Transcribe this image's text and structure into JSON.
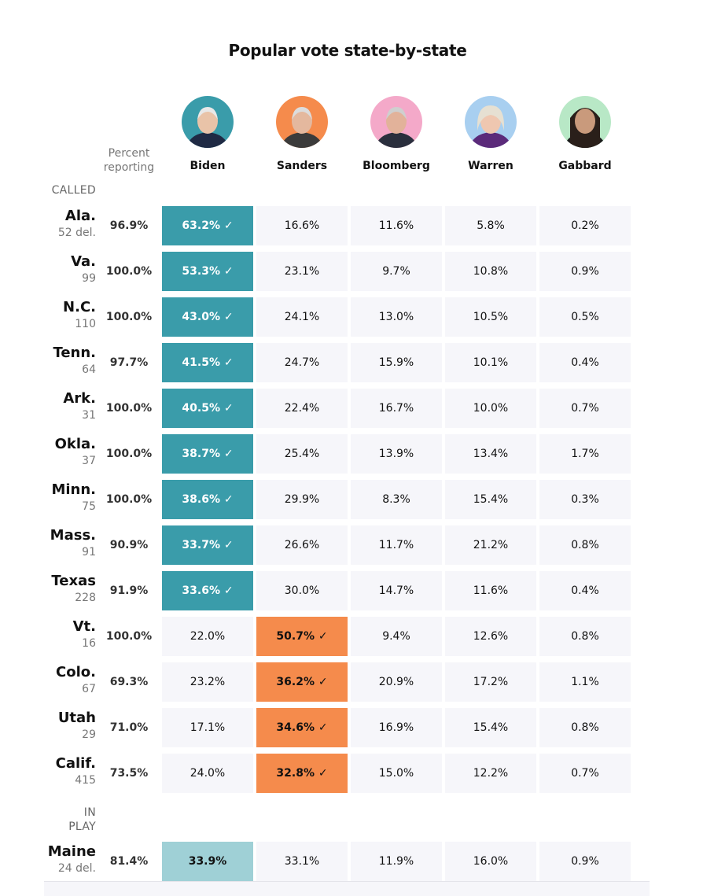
{
  "chart_data": {
    "type": "table",
    "title": "Popular vote state-by-state",
    "reporting_header": "Percent reporting",
    "check_mark": "✓",
    "candidates": [
      {
        "name": "Biden",
        "color": "#3a9caa",
        "avatar_bg": "#3a9caa"
      },
      {
        "name": "Sanders",
        "color": "#f58b4c",
        "avatar_bg": "#f58b4c"
      },
      {
        "name": "Bloomberg",
        "color": "#f4a9c9",
        "avatar_bg": "#f4a9c9"
      },
      {
        "name": "Warren",
        "color": "#a8cff0",
        "avatar_bg": "#a8cff0"
      },
      {
        "name": "Gabbard",
        "color": "#b8e8c6",
        "avatar_bg": "#b8e8c6"
      }
    ],
    "sections": [
      {
        "label": "CALLED",
        "rows": [
          {
            "state": "Ala.",
            "delegates": "52 del.",
            "reporting": "96.9%",
            "values": [
              "63.2%",
              "16.6%",
              "11.6%",
              "5.8%",
              "0.2%"
            ],
            "winner": 0,
            "called": true
          },
          {
            "state": "Va.",
            "delegates": "99",
            "reporting": "100.0%",
            "values": [
              "53.3%",
              "23.1%",
              "9.7%",
              "10.8%",
              "0.9%"
            ],
            "winner": 0,
            "called": true
          },
          {
            "state": "N.C.",
            "delegates": "110",
            "reporting": "100.0%",
            "values": [
              "43.0%",
              "24.1%",
              "13.0%",
              "10.5%",
              "0.5%"
            ],
            "winner": 0,
            "called": true
          },
          {
            "state": "Tenn.",
            "delegates": "64",
            "reporting": "97.7%",
            "values": [
              "41.5%",
              "24.7%",
              "15.9%",
              "10.1%",
              "0.4%"
            ],
            "winner": 0,
            "called": true
          },
          {
            "state": "Ark.",
            "delegates": "31",
            "reporting": "100.0%",
            "values": [
              "40.5%",
              "22.4%",
              "16.7%",
              "10.0%",
              "0.7%"
            ],
            "winner": 0,
            "called": true
          },
          {
            "state": "Okla.",
            "delegates": "37",
            "reporting": "100.0%",
            "values": [
              "38.7%",
              "25.4%",
              "13.9%",
              "13.4%",
              "1.7%"
            ],
            "winner": 0,
            "called": true
          },
          {
            "state": "Minn.",
            "delegates": "75",
            "reporting": "100.0%",
            "values": [
              "38.6%",
              "29.9%",
              "8.3%",
              "15.4%",
              "0.3%"
            ],
            "winner": 0,
            "called": true
          },
          {
            "state": "Mass.",
            "delegates": "91",
            "reporting": "90.9%",
            "values": [
              "33.7%",
              "26.6%",
              "11.7%",
              "21.2%",
              "0.8%"
            ],
            "winner": 0,
            "called": true
          },
          {
            "state": "Texas",
            "delegates": "228",
            "reporting": "91.9%",
            "values": [
              "33.6%",
              "30.0%",
              "14.7%",
              "11.6%",
              "0.4%"
            ],
            "winner": 0,
            "called": true
          },
          {
            "state": "Vt.",
            "delegates": "16",
            "reporting": "100.0%",
            "values": [
              "22.0%",
              "50.7%",
              "9.4%",
              "12.6%",
              "0.8%"
            ],
            "winner": 1,
            "called": true
          },
          {
            "state": "Colo.",
            "delegates": "67",
            "reporting": "69.3%",
            "values": [
              "23.2%",
              "36.2%",
              "20.9%",
              "17.2%",
              "1.1%"
            ],
            "winner": 1,
            "called": true
          },
          {
            "state": "Utah",
            "delegates": "29",
            "reporting": "71.0%",
            "values": [
              "17.1%",
              "34.6%",
              "16.9%",
              "15.4%",
              "0.8%"
            ],
            "winner": 1,
            "called": true
          },
          {
            "state": "Calif.",
            "delegates": "415",
            "reporting": "73.5%",
            "values": [
              "24.0%",
              "32.8%",
              "15.0%",
              "12.2%",
              "0.7%"
            ],
            "winner": 1,
            "called": true
          }
        ]
      },
      {
        "label": "IN PLAY",
        "rows": [
          {
            "state": "Maine",
            "delegates": "24 del.",
            "reporting": "81.4%",
            "values": [
              "33.9%",
              "33.1%",
              "11.9%",
              "16.0%",
              "0.9%"
            ],
            "winner": 0,
            "called": false
          }
        ]
      }
    ]
  }
}
